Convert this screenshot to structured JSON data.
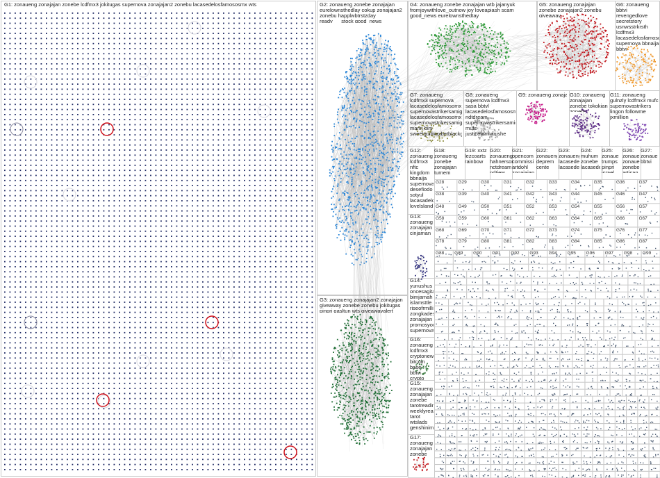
{
  "colors": {
    "border": "#c8c8c8",
    "edge": "#b9b9b9",
    "g1_node": "#1f2a63",
    "g1_ring": "#d0101a",
    "g2_node": "#2a86d8",
    "g3_node": "#1f6e35",
    "g4_node": "#2c9a36",
    "g5_node": "#c2171d",
    "g6_node": "#f09a2e",
    "g8_node": "#c71a8a",
    "g10_node": "#5b2a85",
    "g11_node": "#7a3fb0"
  },
  "groups": {
    "g1": "G1: zonaueng zonajajan zonebe lcdfmx3 jokitugas supernova zonajajan2 zonebu lacasedelosfamososmx wts",
    "g2": "G2: zonaueng zonebe zonajajan eurelownsthedlay cokup zonajajan2 zonebu happlwbtrstzday ready___stock good_news eurelownsthedtay",
    "g3": "G3: zonaueng zonajajan2 zonajajan giveaway zonebe zonebu jokitugas pinpri gasltun wts giveawayalert",
    "g4": "G4: zonaueng zonebe zonajajan wtb jajanyuk fromjoywithlove_outnow joy loveapiash scam good_news eurelownsthedtay",
    "g5": "G5: zonaueng zonajajan zonebe zonajajan2 zonebu giveaway",
    "g6": "G6: zonaueng bbtvi revengedlove secretstory usnwsstrkrsth lcdfmx3 lacasedelosfamososmx supernova bbnaija bbtvi",
    "g7": "G7: zonaueng lcdfmx3 supernova lacasedelosfamosomx supernovastrikersamigo lacasedelosfamosomx supernovastrikersamigo marin bini sweetguilivaxbetblackgold",
    "g8": "G8: zonaueng supernova lcdfmx3 sasa bbtvl lacasedelosfamososmx ndtdream supernovastrikersamigo mufc justiceformanishe",
    "g9": "G9: zonaueng zonajajan",
    "g10": "G10: zonaueng zonajajan zonebe tokokian zonebu",
    "g11": "G11: zonaueng gulnzly lcdfmx3 mufc supernovastrikers lingon followme jxmillion",
    "g12": "G12: zonaueng lcdfmx3 nftc kingdom bbnaija supernova desefiodo sotyul lacasadelo lovelsland",
    "g13": "G13: zonaueng zonajajan cinjaman",
    "g14": "G14: yunushus oncesagita bimjamah islamsttle riseofrmillie zongkades zonajajan promosyon supernova",
    "g15": "G15: zonaueng zonajajan zonebe tarotreading weeklyreads tarot wtslads genshinimpa",
    "g16": "G16: zonaueng lcdfmx3 cryptonews bitcoin base bbtvi crypto baseshobb",
    "g17": "G17: zonaueng zonajajan zonebe",
    "g18": "G18: zonaueng zonebe zonajajan turnem",
    "g19": "G19: xxtz lezcoarts rainbow",
    "g20": "G20: zonaueng hahnerson nctdream ndtjew",
    "g21": "G21: opencom commissi artdohl zonajajan",
    "g22": "G22: zonaueng deprem cente",
    "g23": "G23: zonaueng lacasede lacasede",
    "g24": "G24: muhum zonebe lacasede",
    "g25": "G25: zonaue trumps pinpri israel lacased",
    "g26": "G26: zonaue zonaue zonebe artisan",
    "g27": "G27: zonaue bbtvi"
  },
  "small_groups": [
    "G28",
    "G29",
    "G30",
    "G31",
    "G32",
    "G33",
    "G34",
    "G35",
    "G36",
    "G37",
    "G38",
    "G39",
    "G40",
    "G41",
    "G42",
    "G43",
    "G44",
    "G45",
    "G46",
    "G47",
    "G48",
    "G49",
    "G50",
    "G51",
    "G52",
    "G53",
    "G54",
    "G55",
    "G56",
    "G57",
    "G58",
    "G59",
    "G60",
    "G61",
    "G62",
    "G63",
    "G64",
    "G65",
    "G66",
    "G67",
    "G68",
    "G69",
    "G70",
    "G71",
    "G72",
    "G73",
    "G74",
    "G75",
    "G76",
    "G77",
    "G78",
    "G79",
    "G80",
    "G81",
    "G82",
    "G83",
    "G84",
    "G85",
    "G86",
    "G87",
    "G88",
    "G89",
    "G90",
    "G91",
    "G92",
    "G93",
    "G94",
    "G95",
    "G96",
    "G97",
    "G98",
    "G99"
  ]
}
